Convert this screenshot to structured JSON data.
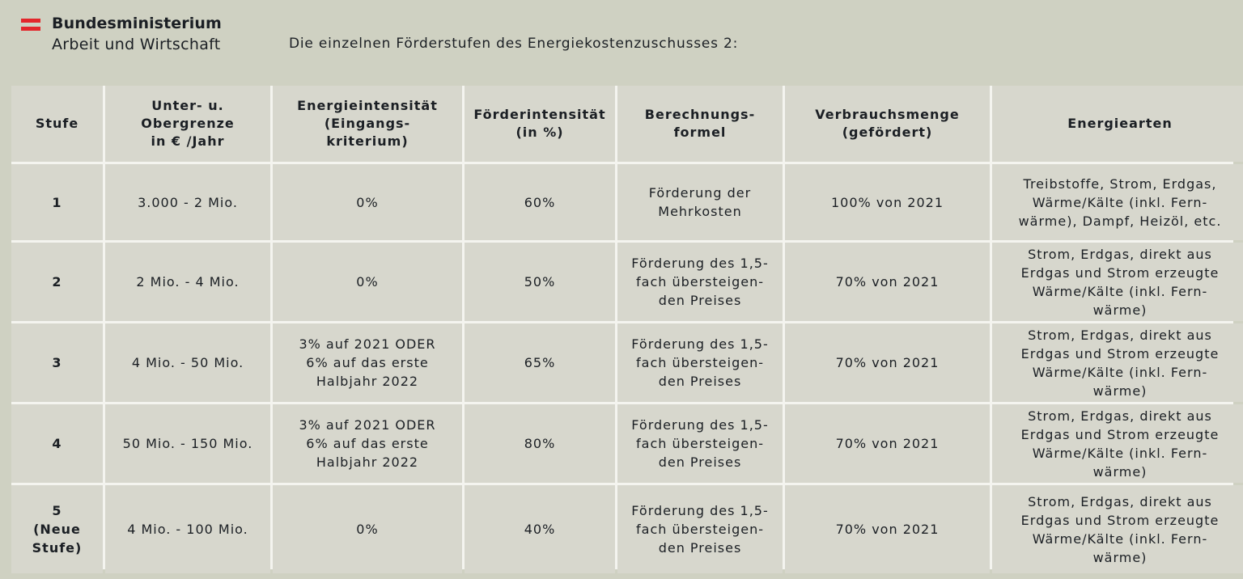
{
  "logo": {
    "line1": "Bundesministerium",
    "line2": "Arbeit und Wirtschaft"
  },
  "heading": "Die einzelnen Förderstufen des Energiekostenzuschusses 2:",
  "table": {
    "headers": [
      "Stufe",
      "Unter- u.\nObergrenze\nin € /Jahr",
      "Energieintensität\n(Eingangs-\nkriterium)",
      "Förderintensität\n(in %)",
      "Berechnungs-\nformel",
      "Verbrauchsmenge\n(gefördert)",
      "Energiearten"
    ],
    "rows": [
      [
        "1",
        "3.000 - 2 Mio.",
        "0%",
        "60%",
        "Förderung der\nMehrkosten",
        "100% von 2021",
        "Treibstoffe, Strom, Erdgas,\nWärme/Kälte (inkl. Fern-\nwärme), Dampf, Heizöl, etc."
      ],
      [
        "2",
        "2 Mio. - 4 Mio.",
        "0%",
        "50%",
        "Förderung des 1,5-\nfach übersteigen-\nden Preises",
        "70% von 2021",
        "Strom, Erdgas, direkt aus\nErdgas und Strom erzeugte\nWärme/Kälte (inkl. Fern-\nwärme)"
      ],
      [
        "3",
        "4 Mio. - 50 Mio.",
        "3% auf 2021 ODER\n6% auf das erste\nHalbjahr 2022",
        "65%",
        "Förderung des 1,5-\nfach übersteigen-\nden Preises",
        "70% von 2021",
        "Strom, Erdgas, direkt aus\nErdgas und Strom erzeugte\nWärme/Kälte (inkl. Fern-\nwärme)"
      ],
      [
        "4",
        "50 Mio. - 150 Mio.",
        "3% auf 2021 ODER\n6% auf das erste\nHalbjahr 2022",
        "80%",
        "Förderung des 1,5-\nfach übersteigen-\nden Preises",
        "70% von 2021",
        "Strom, Erdgas, direkt aus\nErdgas und Strom erzeugte\nWärme/Kälte (inkl. Fern-\nwärme)"
      ],
      [
        "5\n(Neue\nStufe)",
        "4 Mio. - 100 Mio.",
        "0%",
        "40%",
        "Förderung des 1,5-\nfach übersteigen-\nden Preises",
        "70% von 2021",
        "Strom, Erdgas, direkt aus\nErdgas und Strom erzeugte\nWärme/Kälte (inkl. Fern-\nwärme)"
      ]
    ]
  },
  "colors": {
    "background": "#cfd1c2",
    "cell": "#d7d7cd",
    "grid_lines": "#f4f4ef",
    "flag_red": "#e3262b"
  }
}
